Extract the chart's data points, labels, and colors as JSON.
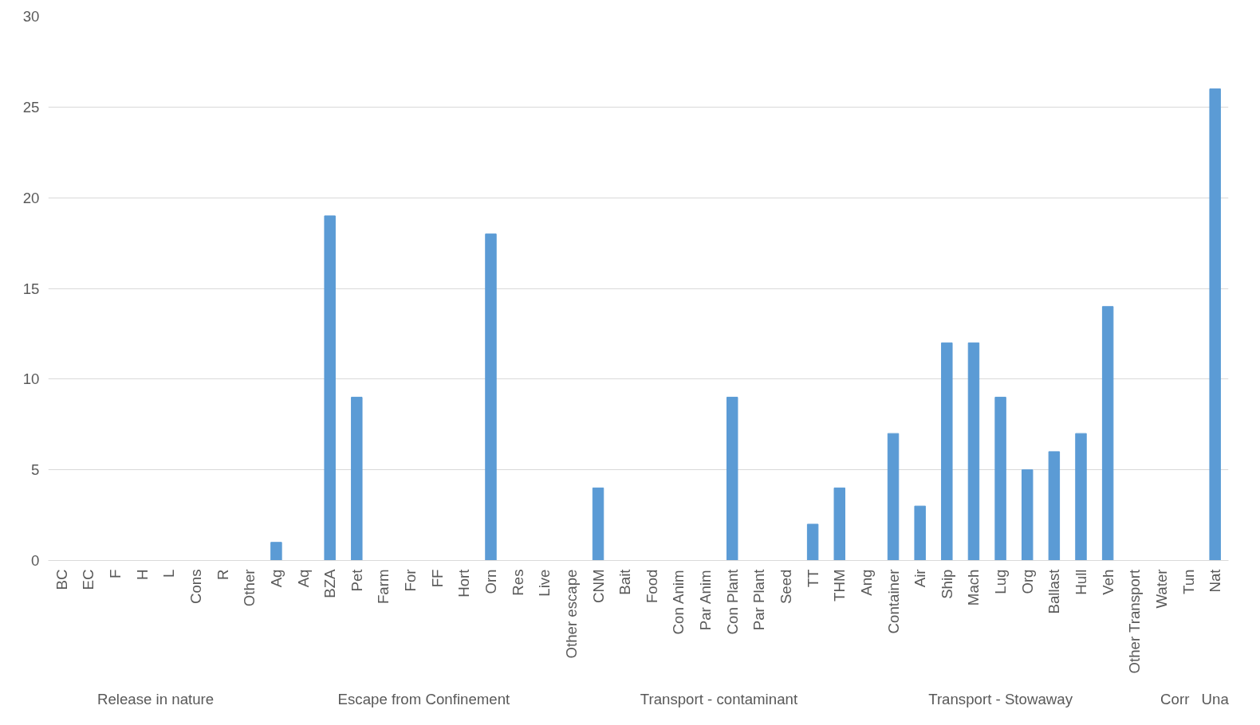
{
  "chart_data": {
    "type": "bar",
    "categories": [
      "BC",
      "EC",
      "F",
      "H",
      "L",
      "Cons",
      "R",
      "Other",
      "Ag",
      "Aq",
      "BZA",
      "Pet",
      "Farm",
      "For",
      "FF",
      "Hort",
      "Orn",
      "Res",
      "Live",
      "Other escape",
      "CNM",
      "Bait",
      "Food",
      "Con Anim",
      "Par Anim",
      "Con Plant",
      "Par Plant",
      "Seed",
      "TT",
      "THM",
      "Ang",
      "Container",
      "Air",
      "Ship",
      "Mach",
      "Lug",
      "Org",
      "Ballast",
      "Hull",
      "Veh",
      "Other Transport",
      "Water",
      "Tun",
      "Nat"
    ],
    "values": [
      0,
      0,
      0,
      0,
      0,
      0,
      0,
      0,
      1,
      0,
      19,
      9,
      0,
      0,
      0,
      0,
      18,
      0,
      0,
      0,
      4,
      0,
      0,
      0,
      0,
      9,
      0,
      0,
      2,
      4,
      0,
      7,
      3,
      12,
      12,
      9,
      5,
      6,
      7,
      14,
      0,
      0,
      0,
      26
    ],
    "color": "#5b9bd5",
    "ylim": [
      0,
      30
    ],
    "yticks": [
      0,
      5,
      10,
      15,
      20,
      25,
      30
    ],
    "grid": "y",
    "annotations": [
      "Release in nature",
      "Escape from Confinement",
      "Transport - contaminant",
      "Transport - Stowaway",
      "Corr",
      "Una"
    ]
  }
}
